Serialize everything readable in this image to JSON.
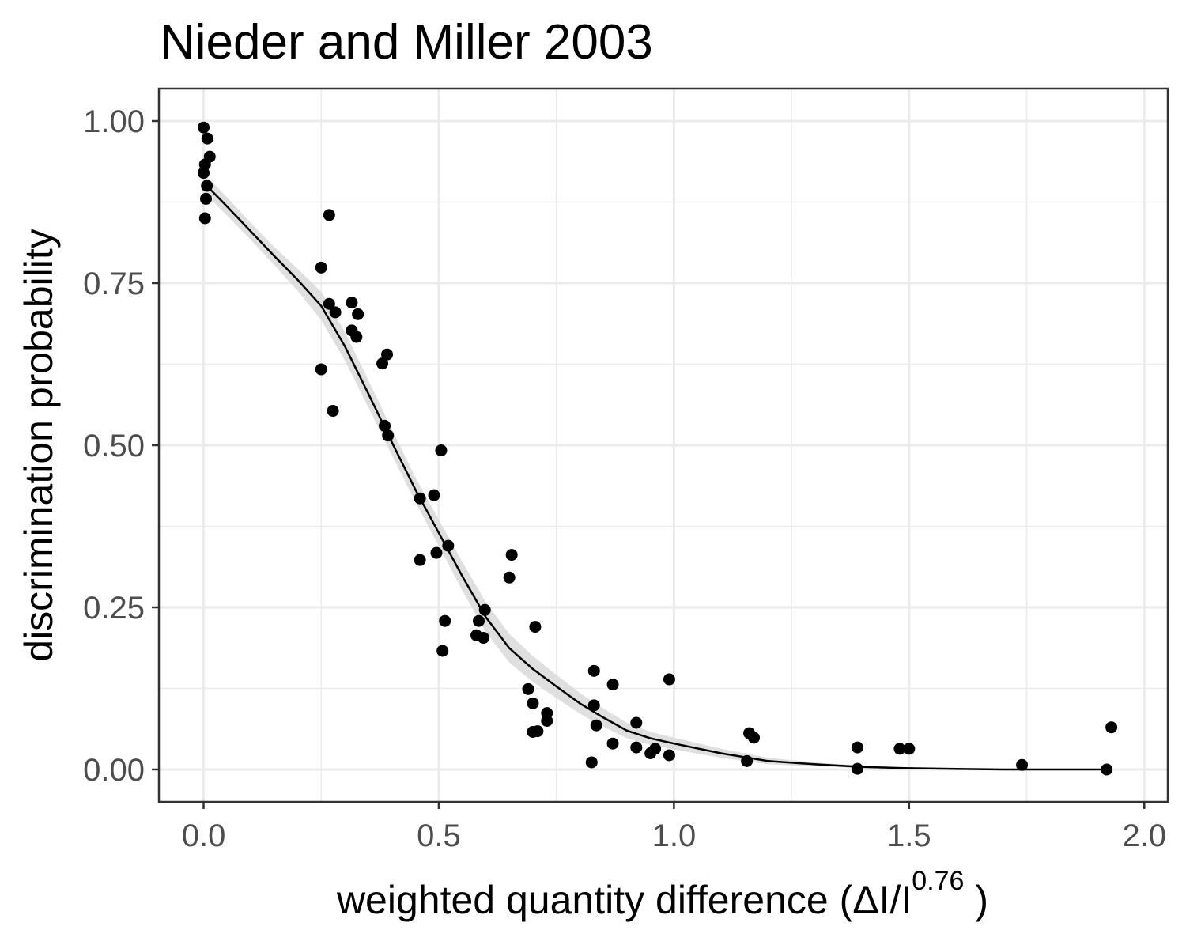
{
  "chart_data": {
    "type": "scatter",
    "title": "Nieder and Miller 2003",
    "xlabel": {
      "text": "weighted  quantity  difference (ΔI/I",
      "superscript": "0.76",
      "suffix": " )"
    },
    "ylabel": "discrimination probability",
    "xlim": [
      -0.095,
      2.05
    ],
    "ylim": [
      -0.05,
      1.05
    ],
    "x_ticks": [
      0.0,
      0.5,
      1.0,
      1.5,
      2.0
    ],
    "x_tick_labels": [
      "0.0",
      "0.5",
      "1.0",
      "1.5",
      "2.0"
    ],
    "y_ticks": [
      0.0,
      0.25,
      0.5,
      0.75,
      1.0
    ],
    "y_tick_labels": [
      "0.00",
      "0.25",
      "0.50",
      "0.75",
      "1.00"
    ],
    "grid": true,
    "legend": "none",
    "colors": {
      "points": "#000000",
      "fit_line": "#000000",
      "ribbon": "#d9d9d9",
      "grid": "#ebebeb",
      "panel_border": "#333333",
      "tick_label": "#4d4d4d"
    },
    "points": [
      {
        "x": 0.0,
        "y": 0.99
      },
      {
        "x": 0.008,
        "y": 0.973
      },
      {
        "x": 0.013,
        "y": 0.945
      },
      {
        "x": 0.003,
        "y": 0.933
      },
      {
        "x": 0.0,
        "y": 0.92
      },
      {
        "x": 0.007,
        "y": 0.9
      },
      {
        "x": 0.005,
        "y": 0.88
      },
      {
        "x": 0.003,
        "y": 0.85
      },
      {
        "x": 0.25,
        "y": 0.774
      },
      {
        "x": 0.25,
        "y": 0.617
      },
      {
        "x": 0.267,
        "y": 0.855
      },
      {
        "x": 0.267,
        "y": 0.718
      },
      {
        "x": 0.28,
        "y": 0.705
      },
      {
        "x": 0.275,
        "y": 0.553
      },
      {
        "x": 0.315,
        "y": 0.72
      },
      {
        "x": 0.315,
        "y": 0.677
      },
      {
        "x": 0.328,
        "y": 0.702
      },
      {
        "x": 0.325,
        "y": 0.667
      },
      {
        "x": 0.38,
        "y": 0.626
      },
      {
        "x": 0.39,
        "y": 0.64
      },
      {
        "x": 0.385,
        "y": 0.53
      },
      {
        "x": 0.392,
        "y": 0.515
      },
      {
        "x": 0.46,
        "y": 0.418
      },
      {
        "x": 0.49,
        "y": 0.423
      },
      {
        "x": 0.505,
        "y": 0.492
      },
      {
        "x": 0.46,
        "y": 0.323
      },
      {
        "x": 0.495,
        "y": 0.334
      },
      {
        "x": 0.52,
        "y": 0.345
      },
      {
        "x": 0.513,
        "y": 0.229
      },
      {
        "x": 0.508,
        "y": 0.183
      },
      {
        "x": 0.58,
        "y": 0.207
      },
      {
        "x": 0.585,
        "y": 0.229
      },
      {
        "x": 0.595,
        "y": 0.203
      },
      {
        "x": 0.598,
        "y": 0.246
      },
      {
        "x": 0.655,
        "y": 0.331
      },
      {
        "x": 0.65,
        "y": 0.296
      },
      {
        "x": 0.705,
        "y": 0.22
      },
      {
        "x": 0.69,
        "y": 0.124
      },
      {
        "x": 0.7,
        "y": 0.102
      },
      {
        "x": 0.7,
        "y": 0.058
      },
      {
        "x": 0.71,
        "y": 0.059
      },
      {
        "x": 0.73,
        "y": 0.087
      },
      {
        "x": 0.73,
        "y": 0.075
      },
      {
        "x": 0.83,
        "y": 0.152
      },
      {
        "x": 0.83,
        "y": 0.099
      },
      {
        "x": 0.835,
        "y": 0.068
      },
      {
        "x": 0.825,
        "y": 0.011
      },
      {
        "x": 0.87,
        "y": 0.131
      },
      {
        "x": 0.87,
        "y": 0.04
      },
      {
        "x": 0.92,
        "y": 0.072
      },
      {
        "x": 0.92,
        "y": 0.034
      },
      {
        "x": 0.95,
        "y": 0.025
      },
      {
        "x": 0.96,
        "y": 0.032
      },
      {
        "x": 0.99,
        "y": 0.139
      },
      {
        "x": 0.99,
        "y": 0.022
      },
      {
        "x": 1.155,
        "y": 0.013
      },
      {
        "x": 1.16,
        "y": 0.056
      },
      {
        "x": 1.17,
        "y": 0.049
      },
      {
        "x": 1.39,
        "y": 0.034
      },
      {
        "x": 1.39,
        "y": 0.001
      },
      {
        "x": 1.48,
        "y": 0.032
      },
      {
        "x": 1.5,
        "y": 0.032
      },
      {
        "x": 1.74,
        "y": 0.007
      },
      {
        "x": 1.92,
        "y": 0.0
      },
      {
        "x": 1.93,
        "y": 0.065
      }
    ],
    "fit_line": [
      {
        "x": 0.0,
        "y": 0.905
      },
      {
        "x": 0.05,
        "y": 0.868
      },
      {
        "x": 0.1,
        "y": 0.83
      },
      {
        "x": 0.15,
        "y": 0.792
      },
      {
        "x": 0.2,
        "y": 0.755
      },
      {
        "x": 0.25,
        "y": 0.715
      },
      {
        "x": 0.3,
        "y": 0.653
      },
      {
        "x": 0.35,
        "y": 0.58
      },
      {
        "x": 0.4,
        "y": 0.505
      },
      {
        "x": 0.45,
        "y": 0.432
      },
      {
        "x": 0.5,
        "y": 0.365
      },
      {
        "x": 0.55,
        "y": 0.298
      },
      {
        "x": 0.6,
        "y": 0.235
      },
      {
        "x": 0.65,
        "y": 0.187
      },
      {
        "x": 0.7,
        "y": 0.155
      },
      {
        "x": 0.75,
        "y": 0.128
      },
      {
        "x": 0.8,
        "y": 0.102
      },
      {
        "x": 0.85,
        "y": 0.08
      },
      {
        "x": 0.9,
        "y": 0.06
      },
      {
        "x": 0.95,
        "y": 0.048
      },
      {
        "x": 1.0,
        "y": 0.04
      },
      {
        "x": 1.1,
        "y": 0.025
      },
      {
        "x": 1.2,
        "y": 0.013
      },
      {
        "x": 1.3,
        "y": 0.008
      },
      {
        "x": 1.4,
        "y": 0.004
      },
      {
        "x": 1.5,
        "y": 0.002
      },
      {
        "x": 1.6,
        "y": 0.001
      },
      {
        "x": 1.7,
        "y": 0.0
      },
      {
        "x": 1.8,
        "y": 0.0
      },
      {
        "x": 1.92,
        "y": 0.0
      }
    ],
    "ribbon_half_width": [
      0.015,
      0.014,
      0.013,
      0.014,
      0.017,
      0.022,
      0.022,
      0.021,
      0.02,
      0.019,
      0.02,
      0.022,
      0.023,
      0.022,
      0.02,
      0.018,
      0.016,
      0.014,
      0.012,
      0.01,
      0.009,
      0.007,
      0.005,
      0.003,
      0.002,
      0.001,
      0.001,
      0.001,
      0.001,
      0.001
    ]
  }
}
